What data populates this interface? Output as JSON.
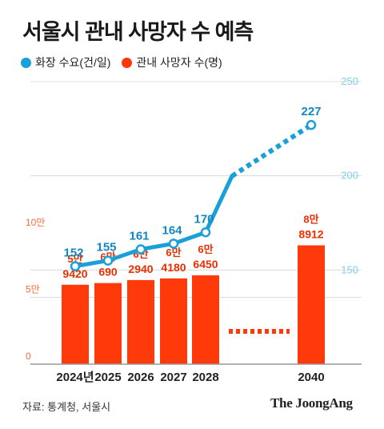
{
  "header": {
    "title": "서울시 관내 사망자 수 예측"
  },
  "legend": {
    "items": [
      {
        "label": "화장 수요(건/일)",
        "color": "#1aa0d8"
      },
      {
        "label": "관내 사망자 수(명)",
        "color": "#ff3a0a"
      }
    ]
  },
  "footer": {
    "source": "자료: 통계청, 서울시",
    "logo": "The JoongAng"
  },
  "chart_data": {
    "type": "bar",
    "title": "서울시 관내 사망자 수 예측",
    "categories": [
      "2024년",
      "2025",
      "2026",
      "2027",
      "2028",
      "2040"
    ],
    "gap_after_index": 4,
    "series": [
      {
        "name": "관내 사망자 수(명)",
        "type": "bar",
        "axis": "left",
        "color": "#ff3a0a",
        "values": [
          59420,
          60690,
          62940,
          64180,
          66450,
          88912
        ],
        "labels": [
          [
            "5만",
            "9420"
          ],
          [
            "6만",
            "690"
          ],
          [
            "6만",
            "2940"
          ],
          [
            "6만",
            "4180"
          ],
          [
            "6만",
            "6450"
          ],
          [
            "8만",
            "8912"
          ]
        ]
      },
      {
        "name": "화장 수요(건/일)",
        "type": "line",
        "axis": "right",
        "color": "#1aa0d8",
        "values": [
          152,
          155,
          161,
          164,
          170,
          227
        ],
        "labels": [
          "152",
          "155",
          "161",
          "164",
          "170",
          "227"
        ]
      }
    ],
    "y_left": {
      "ticks": [
        0,
        50000,
        100000
      ],
      "tick_labels": [
        "0",
        "5만",
        "10만"
      ],
      "color": "#ff6a3a",
      "range": [
        0,
        100000
      ]
    },
    "y_right": {
      "ticks": [
        150,
        200,
        250
      ],
      "tick_labels": [
        "150",
        "200",
        "250"
      ],
      "color": "#7fd0ee",
      "range": [
        100,
        250
      ]
    },
    "grid": true,
    "legend_position": "top-left"
  }
}
